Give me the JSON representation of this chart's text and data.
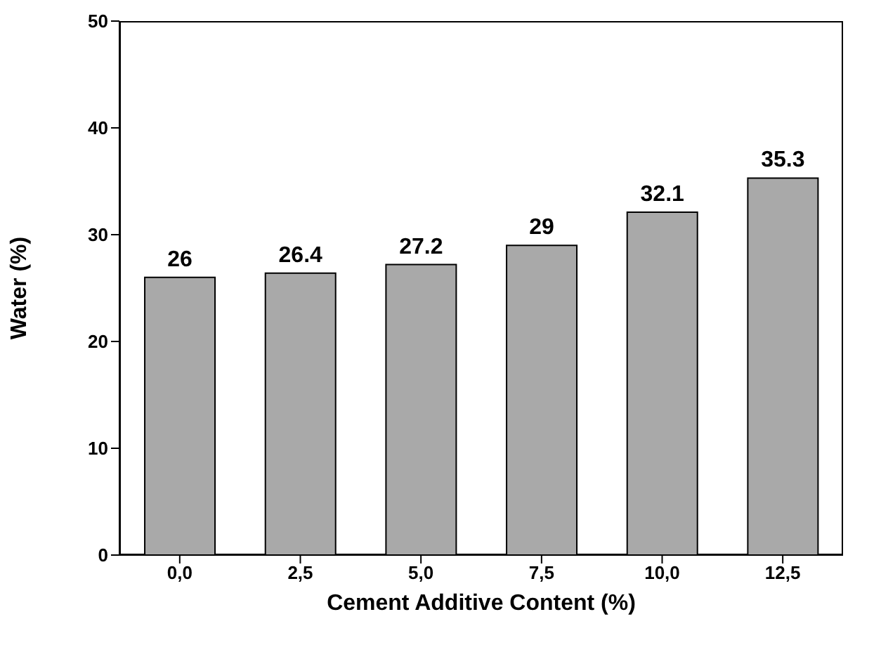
{
  "chart_data": {
    "type": "bar",
    "xlabel": "Cement Additive Content (%)",
    "ylabel": "Water (%)",
    "categories": [
      "0,0",
      "2,5",
      "5,0",
      "7,5",
      "10,0",
      "12,5"
    ],
    "values": [
      26,
      26.4,
      27.2,
      29,
      32.1,
      35.3
    ],
    "color": "#a9a9a9",
    "ylim": [
      0,
      50
    ],
    "yticks": [
      0,
      10,
      20,
      30,
      40,
      50
    ],
    "data_labels": true
  }
}
